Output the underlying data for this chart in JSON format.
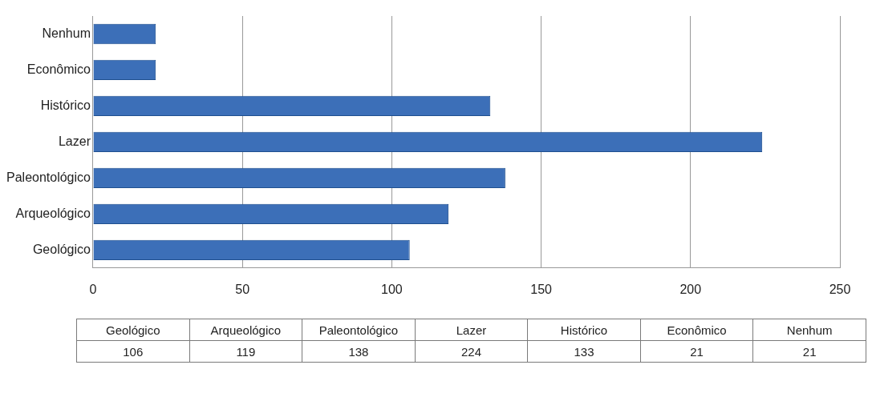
{
  "chart_data": [
    {
      "type": "bar",
      "orientation": "horizontal",
      "categories": [
        "Nenhum",
        "Econômico",
        "Histórico",
        "Lazer",
        "Paleontológico",
        "Arqueológico",
        "Geológico"
      ],
      "values": [
        21,
        21,
        133,
        224,
        138,
        119,
        106
      ],
      "color": "#3c6fb8",
      "xlim": [
        0,
        250
      ],
      "xticks": [
        0,
        50,
        100,
        150,
        200,
        250
      ],
      "grid": "x",
      "legend": false
    },
    {
      "type": "other",
      "categories": [
        "Geológico",
        "Arqueológico",
        "Paleontológico",
        "Lazer",
        "Histórico",
        "Econômico",
        "Nenhum"
      ],
      "values": [
        106,
        119,
        138,
        224,
        133,
        21,
        21
      ],
      "data_labels": true
    }
  ]
}
